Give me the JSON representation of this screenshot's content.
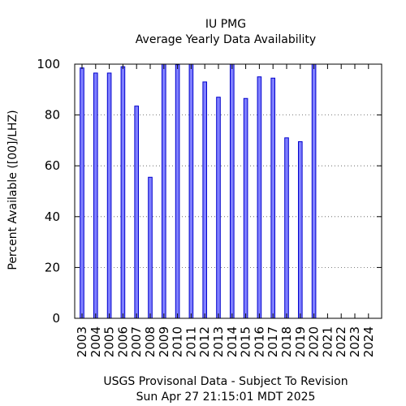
{
  "chart_data": {
    "type": "bar",
    "title": "IU PMG",
    "subtitle": "Average Yearly Data Availability",
    "ylabel": "Percent Available ([00]/LHZ)",
    "xlabel": "",
    "footer_line1": "USGS Provisonal Data - Subject To Revision",
    "footer_line2": "Sun Apr 27 21:15:01 MDT 2025",
    "ylim": [
      0,
      100
    ],
    "yticks": [
      0,
      20,
      40,
      60,
      80,
      100
    ],
    "grid": true,
    "legend": "none",
    "bar_color": "#7f7fff",
    "bar_edge_color": "#0000cc",
    "categories": [
      "2003",
      "2004",
      "2005",
      "2006",
      "2007",
      "2008",
      "2009",
      "2010",
      "2011",
      "2012",
      "2013",
      "2014",
      "2015",
      "2016",
      "2017",
      "2018",
      "2019",
      "2020",
      "2021",
      "2022",
      "2023",
      "2024"
    ],
    "values": [
      98.5,
      96.5,
      96.5,
      99,
      83.5,
      55.5,
      100,
      99.8,
      100,
      93,
      87,
      100,
      86.5,
      95,
      94.5,
      71,
      69.5,
      100,
      0,
      0,
      0,
      0
    ]
  }
}
